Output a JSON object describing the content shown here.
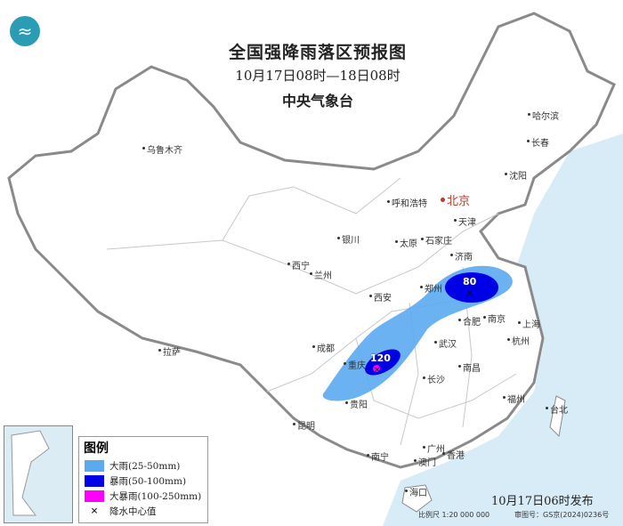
{
  "title": {
    "main": "全国强降雨落区预报图",
    "period": "10月17日08时—18日08时",
    "agency": "中央气象台"
  },
  "logo": "cma-logo-icon",
  "colors": {
    "sea": "#d8ecf7",
    "land": "#ffffff",
    "border": "#8a8a8a",
    "heavy_rain": "#5aaaf0",
    "rainstorm": "#0000e6",
    "severe_rainstorm": "#ff00ff",
    "capital": "#c0392b"
  },
  "cities": [
    "乌鲁木齐",
    "哈尔滨",
    "长春",
    "沈阳",
    "北京",
    "天津",
    "呼和浩特",
    "石家庄",
    "太原",
    "济南",
    "银川",
    "西宁",
    "兰州",
    "西安",
    "郑州",
    "合肥",
    "南京",
    "上海",
    "杭州",
    "武汉",
    "成都",
    "重庆",
    "长沙",
    "南昌",
    "拉萨",
    "贵阳",
    "福州",
    "台北",
    "昆明",
    "南宁",
    "广州",
    "香港",
    "澳门",
    "海口"
  ],
  "rain_centers": [
    {
      "value": "80"
    },
    {
      "value": "120"
    }
  ],
  "legend": {
    "title": "图例",
    "items": [
      {
        "label": "大雨(25-50mm)",
        "color": "#5aaaf0"
      },
      {
        "label": "暴雨(50-100mm)",
        "color": "#0000e6"
      },
      {
        "label": "大暴雨(100-250mm)",
        "color": "#ff00ff"
      },
      {
        "label": "降水中心值",
        "symbol": "×"
      }
    ]
  },
  "issued": "10月17日06时发布",
  "scale": "比例尺 1:20 000 000",
  "map_number": "审图号：GS京(2024)0236号"
}
